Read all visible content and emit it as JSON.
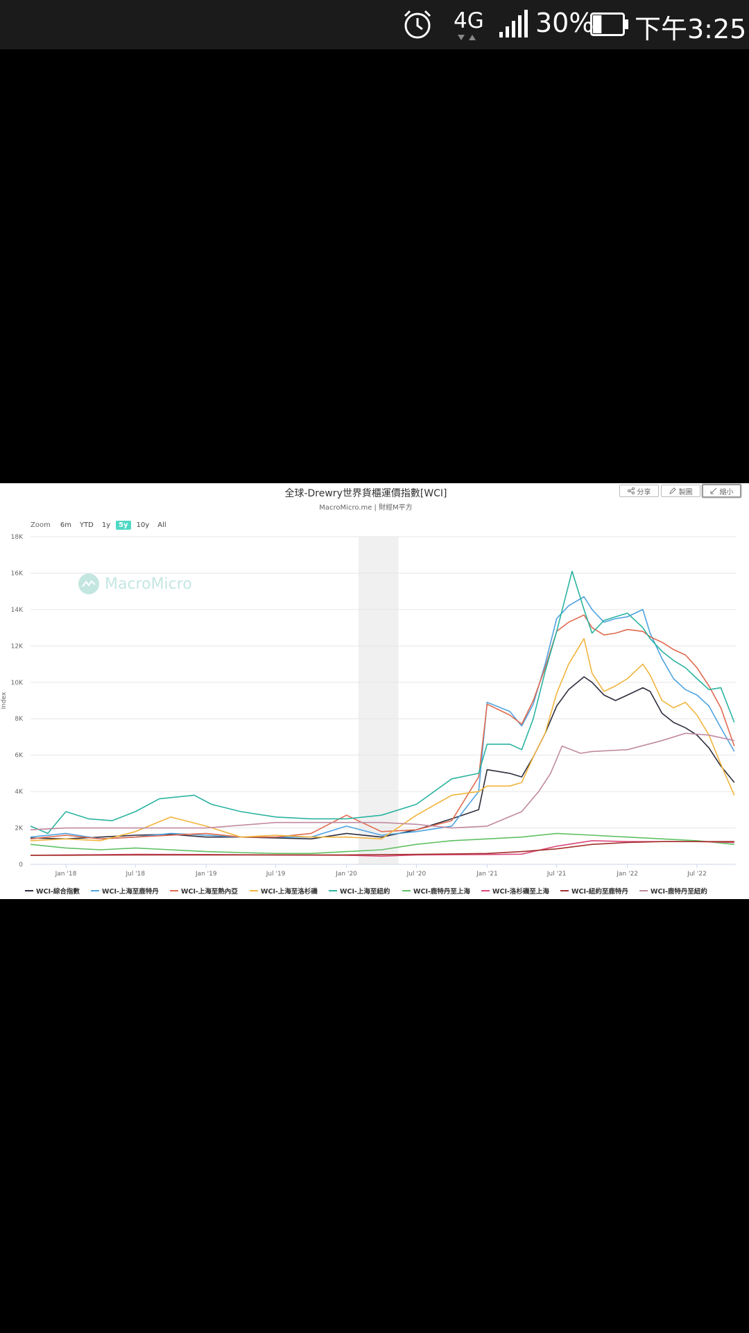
{
  "status_bar": {
    "network": "4G",
    "battery_percent": "30%",
    "battery_level": 0.3,
    "time": "下午3:25",
    "icons": [
      "alarm-clock-icon",
      "network-4g-icon",
      "signal-icon",
      "battery-icon"
    ]
  },
  "toolbar": {
    "share_label": "分享",
    "draw_label": "製圖",
    "shrink_label": "縮小"
  },
  "zoom": {
    "label": "Zoom",
    "options": [
      "6m",
      "YTD",
      "1y",
      "5y",
      "10y",
      "All"
    ],
    "selected": "5y"
  },
  "watermark": "MacroMicro",
  "chart_data": {
    "type": "line",
    "title": "全球-Drewry世界貨櫃運價指數[WCI]",
    "subtitle": "MacroMicro.me | 財經M平方",
    "ylabel": "Index",
    "ylim": [
      0,
      18000
    ],
    "yticks": [
      "0",
      "2K",
      "4K",
      "6K",
      "8K",
      "10K",
      "12K",
      "14K",
      "16K",
      "18K"
    ],
    "xlim": [
      "2017-10-01",
      "2022-10-10"
    ],
    "xticks": [
      "Jan '18",
      "Jul '18",
      "Jan '19",
      "Jul '19",
      "Jan '20",
      "Jul '20",
      "Jan '21",
      "Jul '21",
      "Jan '22",
      "Jul '22"
    ],
    "shaded_band": [
      "2020-02-01",
      "2020-05-15"
    ],
    "grid": true,
    "legend_position": "bottom",
    "series": [
      {
        "name": "WCI-綜合指數",
        "color": "#2d2d3d",
        "points": [
          [
            "2017-10-01",
            1450
          ],
          [
            "2018-01-01",
            1400
          ],
          [
            "2018-04-01",
            1500
          ],
          [
            "2018-07-01",
            1600
          ],
          [
            "2018-10-01",
            1650
          ],
          [
            "2019-01-01",
            1500
          ],
          [
            "2019-04-01",
            1500
          ],
          [
            "2019-07-01",
            1450
          ],
          [
            "2019-10-01",
            1400
          ],
          [
            "2020-01-01",
            1700
          ],
          [
            "2020-04-01",
            1500
          ],
          [
            "2020-07-01",
            1900
          ],
          [
            "2020-10-01",
            2500
          ],
          [
            "2020-12-10",
            3000
          ],
          [
            "2021-01-01",
            5200
          ],
          [
            "2021-03-01",
            5000
          ],
          [
            "2021-04-01",
            4800
          ],
          [
            "2021-05-01",
            5900
          ],
          [
            "2021-06-01",
            7200
          ],
          [
            "2021-07-01",
            8700
          ],
          [
            "2021-08-01",
            9600
          ],
          [
            "2021-09-10",
            10300
          ],
          [
            "2021-10-01",
            10000
          ],
          [
            "2021-11-01",
            9300
          ],
          [
            "2021-12-01",
            9000
          ],
          [
            "2022-01-01",
            9300
          ],
          [
            "2022-02-10",
            9700
          ],
          [
            "2022-03-01",
            9500
          ],
          [
            "2022-04-01",
            8300
          ],
          [
            "2022-05-01",
            7800
          ],
          [
            "2022-06-01",
            7500
          ],
          [
            "2022-07-01",
            7100
          ],
          [
            "2022-08-01",
            6400
          ],
          [
            "2022-09-01",
            5400
          ],
          [
            "2022-10-06",
            4500
          ]
        ]
      },
      {
        "name": "WCI-上海至鹿特丹",
        "color": "#4fa3e0",
        "points": [
          [
            "2017-10-01",
            1500
          ],
          [
            "2018-01-01",
            1700
          ],
          [
            "2018-04-01",
            1400
          ],
          [
            "2018-07-01",
            1500
          ],
          [
            "2018-10-01",
            1700
          ],
          [
            "2019-01-01",
            1600
          ],
          [
            "2019-04-01",
            1500
          ],
          [
            "2019-07-01",
            1500
          ],
          [
            "2019-10-01",
            1500
          ],
          [
            "2020-01-01",
            2100
          ],
          [
            "2020-04-01",
            1600
          ],
          [
            "2020-07-01",
            1800
          ],
          [
            "2020-10-01",
            2100
          ],
          [
            "2020-12-10",
            4000
          ],
          [
            "2021-01-01",
            8900
          ],
          [
            "2021-03-01",
            8400
          ],
          [
            "2021-04-01",
            7600
          ],
          [
            "2021-05-01",
            8800
          ],
          [
            "2021-06-01",
            11000
          ],
          [
            "2021-07-01",
            13500
          ],
          [
            "2021-08-01",
            14200
          ],
          [
            "2021-09-10",
            14700
          ],
          [
            "2021-10-01",
            14000
          ],
          [
            "2021-11-01",
            13300
          ],
          [
            "2021-12-01",
            13500
          ],
          [
            "2022-01-01",
            13600
          ],
          [
            "2022-02-10",
            14000
          ],
          [
            "2022-03-01",
            12700
          ],
          [
            "2022-04-01",
            11300
          ],
          [
            "2022-05-01",
            10200
          ],
          [
            "2022-06-01",
            9600
          ],
          [
            "2022-07-01",
            9300
          ],
          [
            "2022-08-01",
            8700
          ],
          [
            "2022-09-01",
            7500
          ],
          [
            "2022-10-06",
            6200
          ]
        ]
      },
      {
        "name": "WCI-上海至熱內亞",
        "color": "#e06a4f",
        "points": [
          [
            "2017-10-01",
            1400
          ],
          [
            "2018-01-01",
            1600
          ],
          [
            "2018-04-01",
            1400
          ],
          [
            "2018-07-01",
            1500
          ],
          [
            "2018-10-01",
            1600
          ],
          [
            "2019-01-01",
            1700
          ],
          [
            "2019-04-01",
            1500
          ],
          [
            "2019-07-01",
            1500
          ],
          [
            "2019-10-01",
            1700
          ],
          [
            "2020-01-01",
            2700
          ],
          [
            "2020-04-01",
            1800
          ],
          [
            "2020-07-01",
            1900
          ],
          [
            "2020-10-01",
            2400
          ],
          [
            "2020-12-10",
            4800
          ],
          [
            "2021-01-01",
            8800
          ],
          [
            "2021-03-01",
            8200
          ],
          [
            "2021-04-01",
            7700
          ],
          [
            "2021-05-01",
            9000
          ],
          [
            "2021-06-01",
            10800
          ],
          [
            "2021-07-01",
            12800
          ],
          [
            "2021-08-01",
            13300
          ],
          [
            "2021-09-10",
            13700
          ],
          [
            "2021-10-01",
            13000
          ],
          [
            "2021-11-01",
            12600
          ],
          [
            "2021-12-01",
            12700
          ],
          [
            "2022-01-01",
            12900
          ],
          [
            "2022-02-10",
            12800
          ],
          [
            "2022-03-01",
            12500
          ],
          [
            "2022-04-01",
            12200
          ],
          [
            "2022-05-01",
            11800
          ],
          [
            "2022-06-01",
            11500
          ],
          [
            "2022-07-01",
            10800
          ],
          [
            "2022-08-01",
            9800
          ],
          [
            "2022-09-01",
            8600
          ],
          [
            "2022-10-06",
            6500
          ]
        ]
      },
      {
        "name": "WCI-上海至洛杉磯",
        "color": "#f0b43c",
        "points": [
          [
            "2017-10-01",
            1300
          ],
          [
            "2018-01-01",
            1400
          ],
          [
            "2018-04-01",
            1300
          ],
          [
            "2018-07-01",
            1800
          ],
          [
            "2018-10-01",
            2600
          ],
          [
            "2019-01-01",
            2100
          ],
          [
            "2019-04-01",
            1500
          ],
          [
            "2019-07-01",
            1600
          ],
          [
            "2019-10-01",
            1500
          ],
          [
            "2020-01-01",
            1500
          ],
          [
            "2020-04-01",
            1400
          ],
          [
            "2020-07-01",
            2700
          ],
          [
            "2020-10-01",
            3800
          ],
          [
            "2020-12-10",
            4000
          ],
          [
            "2021-01-01",
            4300
          ],
          [
            "2021-03-01",
            4300
          ],
          [
            "2021-04-01",
            4500
          ],
          [
            "2021-05-01",
            5900
          ],
          [
            "2021-06-01",
            7200
          ],
          [
            "2021-07-01",
            9400
          ],
          [
            "2021-08-01",
            11000
          ],
          [
            "2021-09-10",
            12400
          ],
          [
            "2021-10-01",
            10500
          ],
          [
            "2021-11-01",
            9500
          ],
          [
            "2021-12-01",
            9800
          ],
          [
            "2022-01-01",
            10200
          ],
          [
            "2022-02-10",
            11000
          ],
          [
            "2022-03-01",
            10400
          ],
          [
            "2022-04-01",
            9000
          ],
          [
            "2022-05-01",
            8600
          ],
          [
            "2022-06-01",
            8900
          ],
          [
            "2022-07-01",
            8200
          ],
          [
            "2022-08-01",
            7100
          ],
          [
            "2022-09-01",
            5500
          ],
          [
            "2022-10-06",
            3800
          ]
        ]
      },
      {
        "name": "WCI-上海至紐約",
        "color": "#2ab3a0",
        "points": [
          [
            "2017-10-01",
            2100
          ],
          [
            "2017-11-15",
            1700
          ],
          [
            "2018-01-01",
            2900
          ],
          [
            "2018-03-01",
            2500
          ],
          [
            "2018-05-01",
            2400
          ],
          [
            "2018-07-01",
            2900
          ],
          [
            "2018-09-01",
            3600
          ],
          [
            "2018-12-01",
            3800
          ],
          [
            "2019-01-15",
            3300
          ],
          [
            "2019-04-01",
            2900
          ],
          [
            "2019-07-01",
            2600
          ],
          [
            "2019-10-01",
            2500
          ],
          [
            "2020-01-01",
            2500
          ],
          [
            "2020-04-01",
            2700
          ],
          [
            "2020-07-01",
            3300
          ],
          [
            "2020-10-01",
            4700
          ],
          [
            "2020-12-10",
            5000
          ],
          [
            "2021-01-01",
            6600
          ],
          [
            "2021-03-01",
            6600
          ],
          [
            "2021-04-01",
            6300
          ],
          [
            "2021-05-01",
            8000
          ],
          [
            "2021-06-01",
            10600
          ],
          [
            "2021-07-01",
            12800
          ],
          [
            "2021-08-10",
            16100
          ],
          [
            "2021-09-10",
            14000
          ],
          [
            "2021-10-01",
            12700
          ],
          [
            "2021-11-01",
            13400
          ],
          [
            "2021-12-01",
            13600
          ],
          [
            "2022-01-01",
            13800
          ],
          [
            "2022-02-10",
            13000
          ],
          [
            "2022-03-01",
            12400
          ],
          [
            "2022-04-01",
            11700
          ],
          [
            "2022-05-01",
            11200
          ],
          [
            "2022-06-01",
            10800
          ],
          [
            "2022-07-01",
            10200
          ],
          [
            "2022-08-01",
            9600
          ],
          [
            "2022-09-01",
            9700
          ],
          [
            "2022-10-06",
            7800
          ]
        ]
      },
      {
        "name": "WCI-鹿特丹至上海",
        "color": "#5fbf62",
        "points": [
          [
            "2017-10-01",
            1100
          ],
          [
            "2018-01-01",
            900
          ],
          [
            "2018-04-01",
            800
          ],
          [
            "2018-07-01",
            900
          ],
          [
            "2018-10-01",
            800
          ],
          [
            "2019-01-01",
            700
          ],
          [
            "2019-04-01",
            650
          ],
          [
            "2019-07-01",
            600
          ],
          [
            "2019-10-01",
            600
          ],
          [
            "2020-01-01",
            700
          ],
          [
            "2020-04-01",
            800
          ],
          [
            "2020-07-01",
            1100
          ],
          [
            "2020-10-01",
            1300
          ],
          [
            "2021-01-01",
            1400
          ],
          [
            "2021-04-01",
            1500
          ],
          [
            "2021-07-01",
            1700
          ],
          [
            "2021-10-01",
            1600
          ],
          [
            "2022-01-01",
            1500
          ],
          [
            "2022-04-01",
            1400
          ],
          [
            "2022-07-01",
            1300
          ],
          [
            "2022-10-06",
            1100
          ]
        ]
      },
      {
        "name": "WCI-洛杉磯至上海",
        "color": "#d9477a",
        "points": [
          [
            "2017-10-01",
            500
          ],
          [
            "2018-01-01",
            520
          ],
          [
            "2018-07-01",
            550
          ],
          [
            "2019-01-01",
            540
          ],
          [
            "2019-07-01",
            520
          ],
          [
            "2020-01-01",
            500
          ],
          [
            "2020-04-01",
            450
          ],
          [
            "2020-07-01",
            520
          ],
          [
            "2020-10-01",
            530
          ],
          [
            "2021-01-01",
            540
          ],
          [
            "2021-04-01",
            560
          ],
          [
            "2021-07-01",
            1000
          ],
          [
            "2021-10-01",
            1300
          ],
          [
            "2022-01-01",
            1250
          ],
          [
            "2022-04-01",
            1250
          ],
          [
            "2022-07-01",
            1250
          ],
          [
            "2022-10-06",
            1200
          ]
        ]
      },
      {
        "name": "WCI-紐約至鹿特丹",
        "color": "#a3302b",
        "points": [
          [
            "2017-10-01",
            500
          ],
          [
            "2018-01-01",
            500
          ],
          [
            "2018-07-01",
            520
          ],
          [
            "2019-01-01",
            520
          ],
          [
            "2019-07-01",
            520
          ],
          [
            "2020-01-01",
            520
          ],
          [
            "2020-07-01",
            550
          ],
          [
            "2021-01-01",
            600
          ],
          [
            "2021-04-01",
            700
          ],
          [
            "2021-07-01",
            850
          ],
          [
            "2021-10-01",
            1100
          ],
          [
            "2022-01-01",
            1200
          ],
          [
            "2022-04-01",
            1250
          ],
          [
            "2022-07-01",
            1250
          ],
          [
            "2022-10-06",
            1250
          ]
        ]
      },
      {
        "name": "WCI-鹿特丹至紐約",
        "color": "#c08aa0",
        "points": [
          [
            "2017-10-01",
            1900
          ],
          [
            "2018-01-01",
            2000
          ],
          [
            "2018-07-01",
            2000
          ],
          [
            "2019-01-01",
            2000
          ],
          [
            "2019-07-01",
            2300
          ],
          [
            "2020-01-01",
            2300
          ],
          [
            "2020-04-01",
            2300
          ],
          [
            "2020-07-01",
            2200
          ],
          [
            "2020-10-01",
            2000
          ],
          [
            "2021-01-01",
            2100
          ],
          [
            "2021-04-01",
            2900
          ],
          [
            "2021-05-15",
            4000
          ],
          [
            "2021-06-15",
            5000
          ],
          [
            "2021-07-15",
            6500
          ],
          [
            "2021-09-01",
            6100
          ],
          [
            "2021-10-01",
            6200
          ],
          [
            "2022-01-01",
            6300
          ],
          [
            "2022-04-01",
            6800
          ],
          [
            "2022-06-01",
            7200
          ],
          [
            "2022-08-01",
            7100
          ],
          [
            "2022-10-06",
            6800
          ]
        ]
      }
    ]
  }
}
